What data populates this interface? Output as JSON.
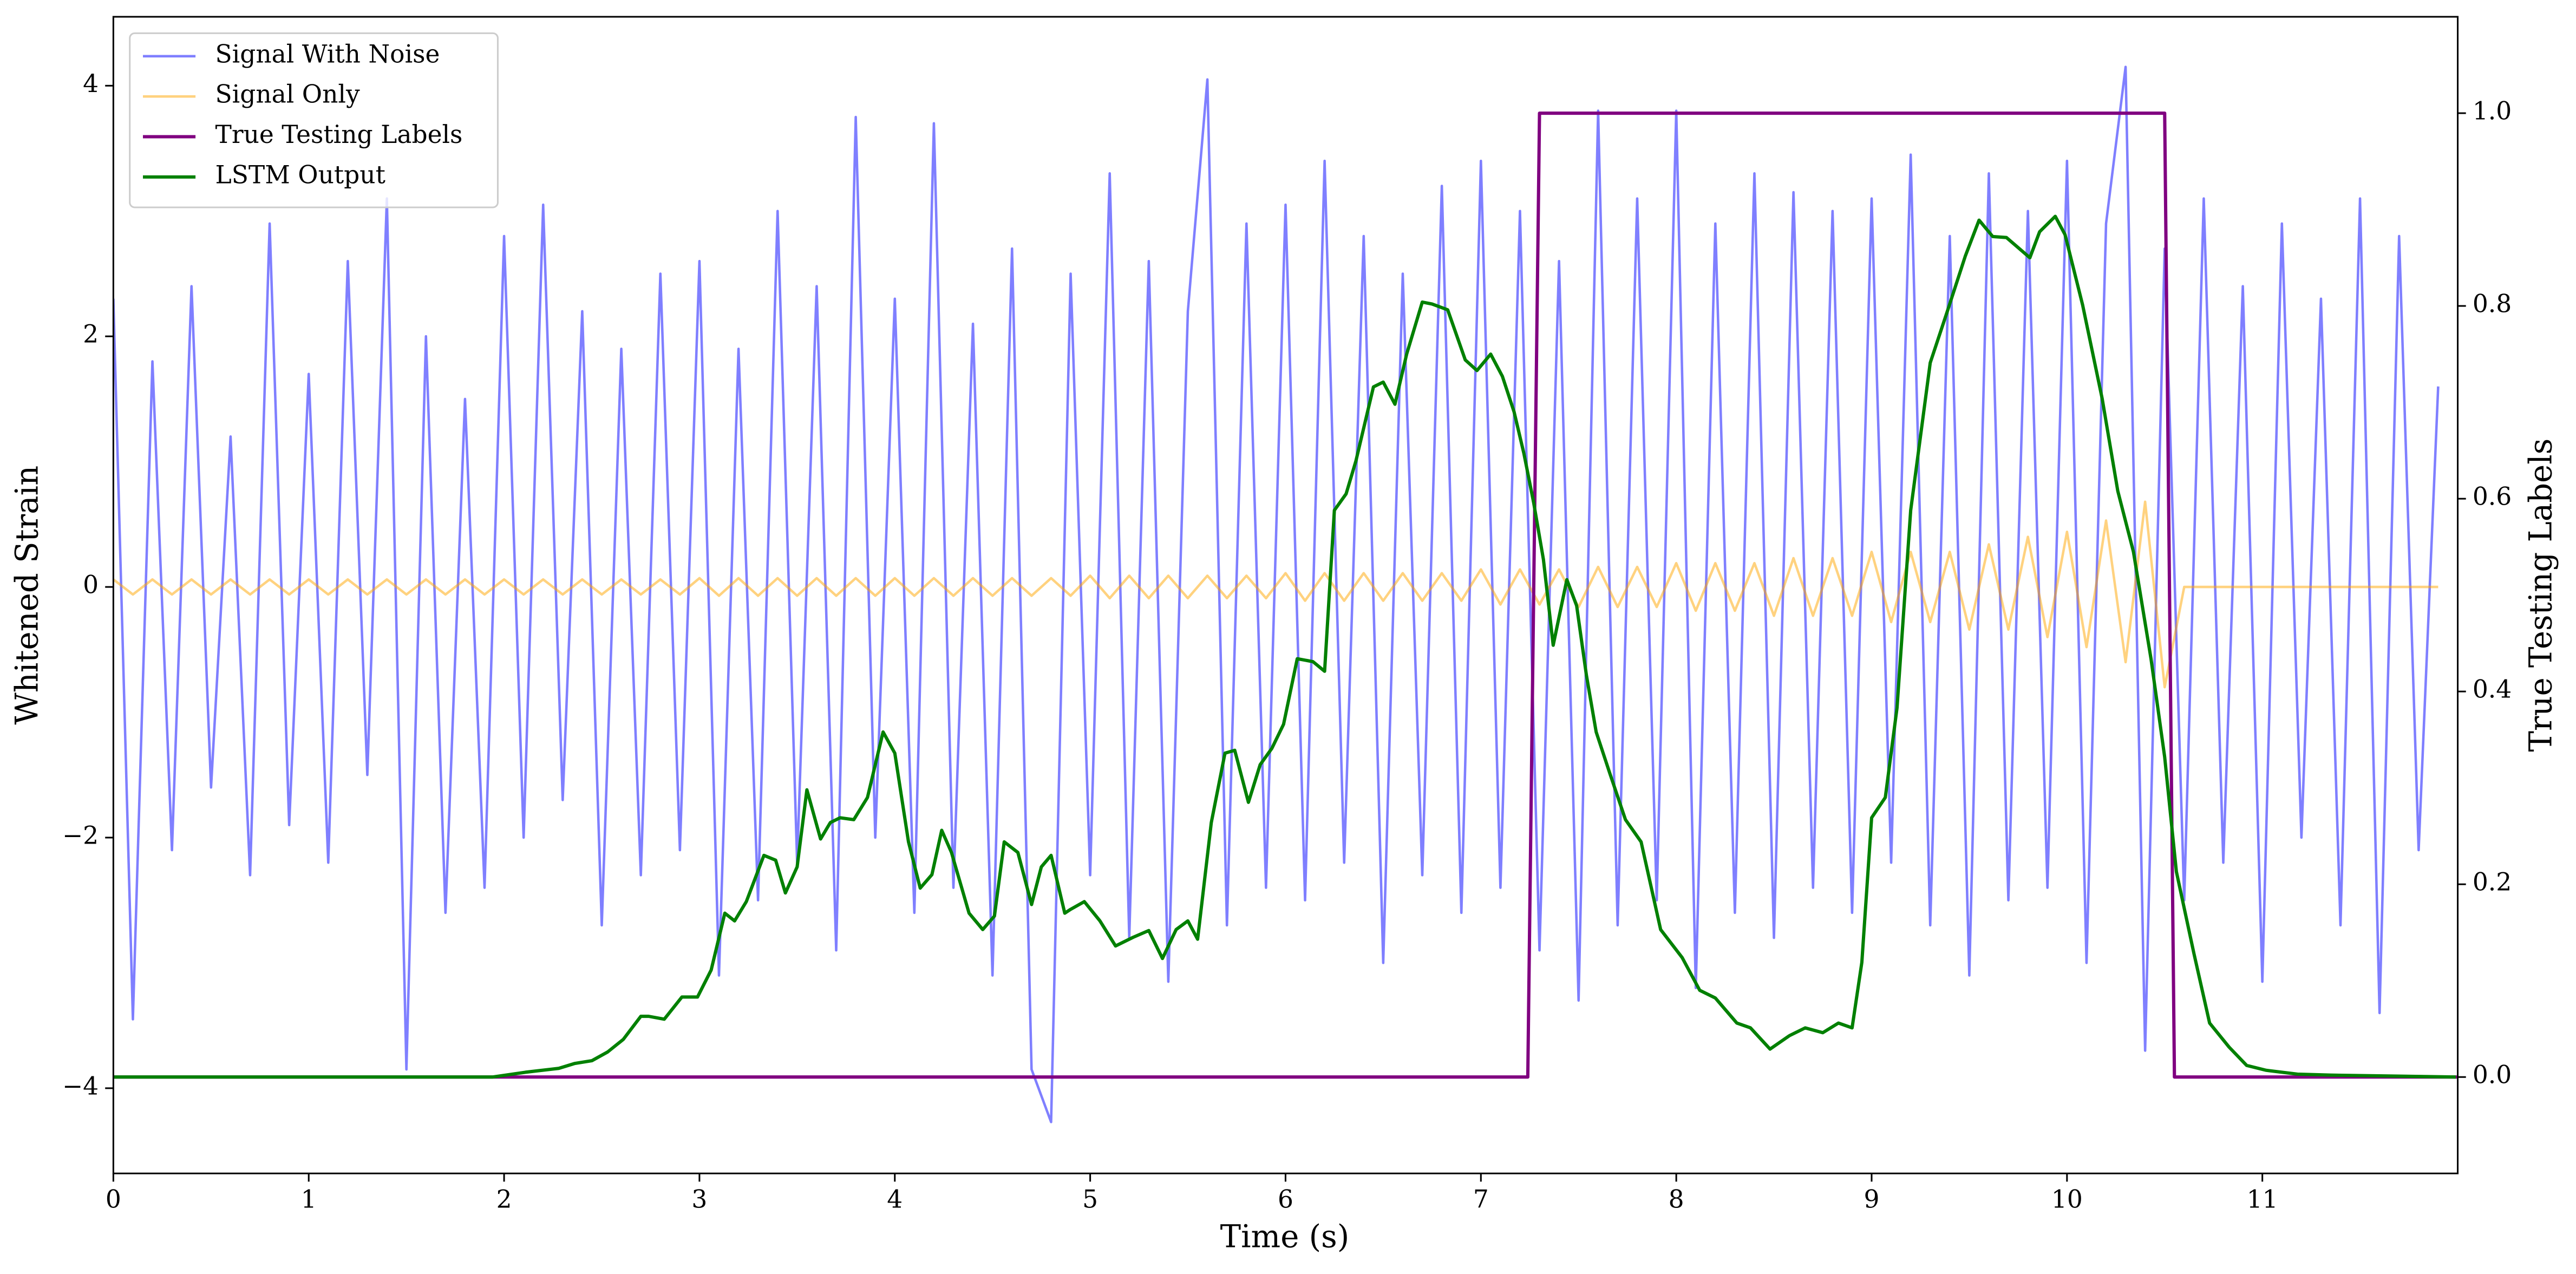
{
  "chart_data": {
    "type": "line",
    "xlabel": "Time (s)",
    "ylabel": "Whitened Strain",
    "y2label": "True Testing Labels",
    "xlim": [
      0,
      12
    ],
    "xticks": [
      0,
      1,
      2,
      3,
      4,
      5,
      6,
      7,
      8,
      9,
      10,
      11
    ],
    "ylim": [
      -4.68,
      4.55
    ],
    "yticks": [
      {
        "value": -4,
        "label": "−4"
      },
      {
        "value": -2,
        "label": "−2"
      },
      0,
      2,
      4
    ],
    "y2lim": [
      -0.1,
      1.1
    ],
    "y2ticks": [
      {
        "value": 0,
        "label": "0.0"
      },
      0.2,
      0.4,
      0.6,
      0.8,
      {
        "value": 1,
        "label": "1.0"
      }
    ],
    "grid": false,
    "legend": "upper left",
    "x": [
      0,
      0.1,
      0.2,
      0.3,
      0.4,
      0.5,
      0.6,
      0.7,
      0.8,
      0.9,
      1,
      1.1,
      1.2,
      1.3,
      1.4,
      1.5,
      1.6,
      1.7,
      1.8,
      1.9,
      2,
      2.1,
      2.2,
      2.3,
      2.4,
      2.5,
      2.6,
      2.7,
      2.8,
      2.9,
      3,
      3.1,
      3.2,
      3.3,
      3.4,
      3.5,
      3.6,
      3.7,
      3.8,
      3.9,
      4,
      4.1,
      4.2,
      4.3,
      4.4,
      4.5,
      4.6,
      4.7,
      4.8,
      4.9,
      5,
      5.1,
      5.2,
      5.3,
      5.4,
      5.5,
      5.6,
      5.7,
      5.8,
      5.9,
      6,
      6.1,
      6.2,
      6.3,
      6.4,
      6.5,
      6.6,
      6.7,
      6.8,
      6.9,
      7,
      7.1,
      7.2,
      7.3,
      7.4,
      7.5,
      7.6,
      7.7,
      7.8,
      7.9,
      8,
      8.1,
      8.2,
      8.3,
      8.4,
      8.5,
      8.6,
      8.7,
      8.8,
      8.9,
      9,
      9.1,
      9.2,
      9.3,
      9.4,
      9.5,
      9.6,
      9.7,
      9.8,
      9.9,
      10,
      10.1,
      10.2,
      10.3,
      10.4,
      10.5,
      10.6,
      10.7,
      10.8,
      10.9,
      11,
      11.1,
      11.2,
      11.3,
      11.4,
      11.5,
      11.6,
      11.7,
      11.8,
      11.9
    ],
    "series": [
      {
        "name": "Signal With Noise",
        "color": "#0000ff",
        "alpha": 0.5,
        "width": 1.5,
        "values": [
          2.3,
          -3.45,
          1.8,
          -2.1,
          2.4,
          -1.6,
          1.2,
          -2.3,
          2.9,
          -1.9,
          1.7,
          -2.2,
          2.6,
          -1.5,
          3.1,
          -3.85,
          2.0,
          -2.6,
          1.5,
          -2.4,
          2.8,
          -2.0,
          3.05,
          -1.7,
          2.2,
          -2.7,
          1.9,
          -2.3,
          2.5,
          -2.1,
          2.6,
          -3.1,
          1.9,
          -2.5,
          3.0,
          -2.2,
          2.4,
          -2.9,
          3.75,
          -2.0,
          2.3,
          -2.6,
          3.7,
          -2.4,
          2.1,
          -3.1,
          2.7,
          -3.85,
          -4.27,
          2.5,
          -2.3,
          3.3,
          -2.8,
          2.6,
          -3.15,
          2.2,
          4.05,
          -2.7,
          2.9,
          -2.4,
          3.05,
          -2.5,
          3.4,
          -2.2,
          2.8,
          -3.0,
          2.5,
          -2.3,
          3.2,
          -2.6,
          3.4,
          -2.4,
          3.0,
          -2.9,
          2.6,
          -3.3,
          3.8,
          -2.7,
          3.1,
          -2.5,
          3.8,
          -3.2,
          2.9,
          -2.6,
          3.3,
          -2.8,
          3.15,
          -2.4,
          3.0,
          -2.6,
          3.1,
          -2.2,
          3.45,
          -2.7,
          2.8,
          -3.1,
          3.3,
          -2.5,
          3.0,
          -2.4,
          3.4,
          -3.0,
          2.9,
          4.15,
          -3.7,
          2.7,
          -2.5,
          3.1,
          -2.2,
          2.4,
          -3.15,
          2.9,
          -2.0,
          2.3,
          -2.7,
          3.1,
          -3.4,
          2.8,
          -2.1,
          1.6
        ]
      },
      {
        "name": "Signal Only",
        "color": "#ffa500",
        "alpha": 0.5,
        "width": 1.5,
        "values": [
          0.06,
          -0.06,
          0.06,
          -0.06,
          0.06,
          -0.06,
          0.06,
          -0.06,
          0.06,
          -0.06,
          0.06,
          -0.06,
          0.06,
          -0.06,
          0.06,
          -0.06,
          0.06,
          -0.06,
          0.06,
          -0.06,
          0.06,
          -0.06,
          0.06,
          -0.06,
          0.06,
          -0.06,
          0.06,
          -0.06,
          0.06,
          -0.06,
          0.07,
          -0.07,
          0.07,
          -0.07,
          0.07,
          -0.07,
          0.07,
          -0.07,
          0.07,
          -0.07,
          0.07,
          -0.07,
          0.07,
          -0.07,
          0.07,
          -0.07,
          0.07,
          -0.07,
          0.07,
          -0.07,
          0.09,
          -0.09,
          0.09,
          -0.09,
          0.09,
          -0.09,
          0.09,
          -0.09,
          0.09,
          -0.09,
          0.11,
          -0.11,
          0.11,
          -0.11,
          0.11,
          -0.11,
          0.11,
          -0.11,
          0.11,
          -0.11,
          0.14,
          -0.14,
          0.14,
          -0.14,
          0.14,
          -0.16,
          0.16,
          -0.16,
          0.16,
          -0.16,
          0.19,
          -0.19,
          0.19,
          -0.19,
          0.19,
          -0.23,
          0.23,
          -0.23,
          0.23,
          -0.23,
          0.28,
          -0.28,
          0.28,
          -0.28,
          0.28,
          -0.34,
          0.34,
          -0.34,
          0.4,
          -0.4,
          0.44,
          -0.48,
          0.53,
          -0.6,
          0.68,
          -0.8,
          0,
          0,
          0,
          0,
          0,
          0,
          0,
          0,
          0,
          0,
          0,
          0,
          0,
          0
        ]
      },
      {
        "name": "True Testing Labels",
        "color": "purple",
        "alpha": 1,
        "width": 2,
        "axis": "y2",
        "x": [
          0,
          7.24,
          7.3,
          10.5,
          10.55,
          12
        ],
        "values": [
          0,
          0,
          1,
          1,
          0,
          0
        ]
      },
      {
        "name": "LSTM Output",
        "color": "green",
        "alpha": 1,
        "width": 2,
        "axis": "y2",
        "x": [
          0,
          1.94,
          2.11,
          2.28,
          2.36,
          2.45,
          2.53,
          2.61,
          2.7,
          2.74,
          2.82,
          2.91,
          2.99,
          3.06,
          3.13,
          3.18,
          3.24,
          3.33,
          3.39,
          3.44,
          3.5,
          3.55,
          3.62,
          3.67,
          3.72,
          3.79,
          3.86,
          3.94,
          4.0,
          4.07,
          4.13,
          4.19,
          4.24,
          4.29,
          4.38,
          4.45,
          4.51,
          4.56,
          4.63,
          4.7,
          4.75,
          4.8,
          4.87,
          4.9,
          4.97,
          5.05,
          5.13,
          5.22,
          5.3,
          5.37,
          5.44,
          5.5,
          5.55,
          5.62,
          5.69,
          5.74,
          5.81,
          5.87,
          5.93,
          5.99,
          6.06,
          6.14,
          6.2,
          6.25,
          6.31,
          6.36,
          6.45,
          6.5,
          6.56,
          6.62,
          6.7,
          6.75,
          6.83,
          6.92,
          6.98,
          7.05,
          7.11,
          7.17,
          7.22,
          7.27,
          7.32,
          7.37,
          7.44,
          7.49,
          7.54,
          7.59,
          7.66,
          7.74,
          7.82,
          7.92,
          8.03,
          8.12,
          8.2,
          8.31,
          8.38,
          8.48,
          8.58,
          8.66,
          8.75,
          8.83,
          8.9,
          8.95,
          9.0,
          9.07,
          9.13,
          9.2,
          9.3,
          9.39,
          9.48,
          9.55,
          9.62,
          9.69,
          9.77,
          9.81,
          9.86,
          9.94,
          9.99,
          10.08,
          10.18,
          10.26,
          10.34,
          10.43,
          10.5,
          10.56,
          10.65,
          10.73,
          10.83,
          10.92,
          11.02,
          11.18,
          11.35,
          11.99
        ],
        "values": [
          0,
          0,
          0.005,
          0.009,
          0.014,
          0.017,
          0.026,
          0.039,
          0.063,
          0.063,
          0.06,
          0.083,
          0.083,
          0.111,
          0.17,
          0.162,
          0.182,
          0.23,
          0.225,
          0.191,
          0.218,
          0.298,
          0.247,
          0.264,
          0.269,
          0.267,
          0.29,
          0.358,
          0.336,
          0.244,
          0.196,
          0.21,
          0.256,
          0.233,
          0.17,
          0.153,
          0.167,
          0.244,
          0.233,
          0.179,
          0.218,
          0.23,
          0.17,
          0.174,
          0.182,
          0.162,
          0.136,
          0.145,
          0.152,
          0.123,
          0.153,
          0.162,
          0.143,
          0.264,
          0.336,
          0.339,
          0.285,
          0.324,
          0.341,
          0.366,
          0.434,
          0.431,
          0.421,
          0.588,
          0.605,
          0.639,
          0.716,
          0.721,
          0.698,
          0.75,
          0.804,
          0.802,
          0.796,
          0.744,
          0.733,
          0.75,
          0.727,
          0.69,
          0.647,
          0.596,
          0.537,
          0.448,
          0.516,
          0.489,
          0.417,
          0.358,
          0.315,
          0.267,
          0.244,
          0.153,
          0.124,
          0.09,
          0.082,
          0.056,
          0.051,
          0.029,
          0.043,
          0.051,
          0.046,
          0.056,
          0.051,
          0.119,
          0.269,
          0.29,
          0.383,
          0.588,
          0.741,
          0.796,
          0.852,
          0.889,
          0.872,
          0.871,
          0.857,
          0.85,
          0.877,
          0.893,
          0.874,
          0.801,
          0.704,
          0.608,
          0.545,
          0.434,
          0.332,
          0.213,
          0.128,
          0.056,
          0.031,
          0.012,
          0.007,
          0.003,
          0.002,
          0
        ]
      }
    ]
  }
}
